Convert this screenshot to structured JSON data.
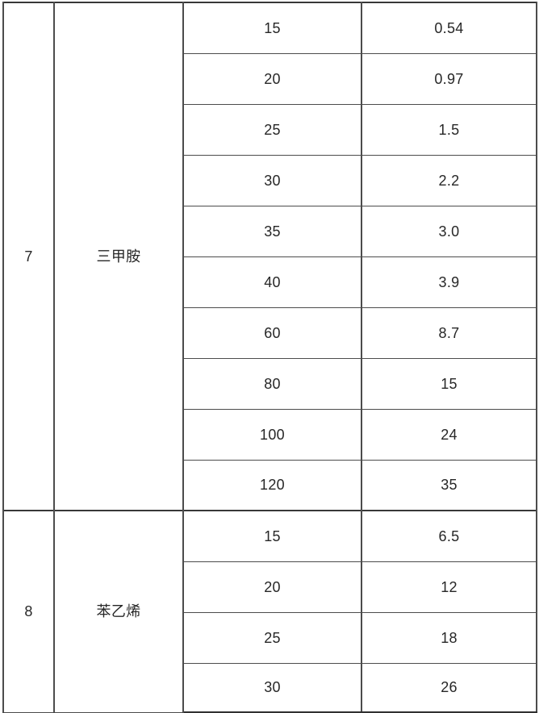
{
  "page": {
    "background": "#ffffff"
  },
  "colors": {
    "grid_line": "#4c4c4c",
    "heavy_line": "#383838",
    "text": "#272727"
  },
  "table": {
    "groups": [
      {
        "index": "7",
        "name": "三甲胺",
        "rows": [
          [
            "15",
            "0.54"
          ],
          [
            "20",
            "0.97"
          ],
          [
            "25",
            "1.5"
          ],
          [
            "30",
            "2.2"
          ],
          [
            "35",
            "3.0"
          ],
          [
            "40",
            "3.9"
          ],
          [
            "60",
            "8.7"
          ],
          [
            "80",
            "15"
          ],
          [
            "100",
            "24"
          ],
          [
            "120",
            "35"
          ]
        ]
      },
      {
        "index": "8",
        "name": "苯乙烯",
        "rows": [
          [
            "15",
            "6.5"
          ],
          [
            "20",
            "12"
          ],
          [
            "25",
            "18"
          ],
          [
            "30",
            "26"
          ]
        ]
      }
    ]
  }
}
